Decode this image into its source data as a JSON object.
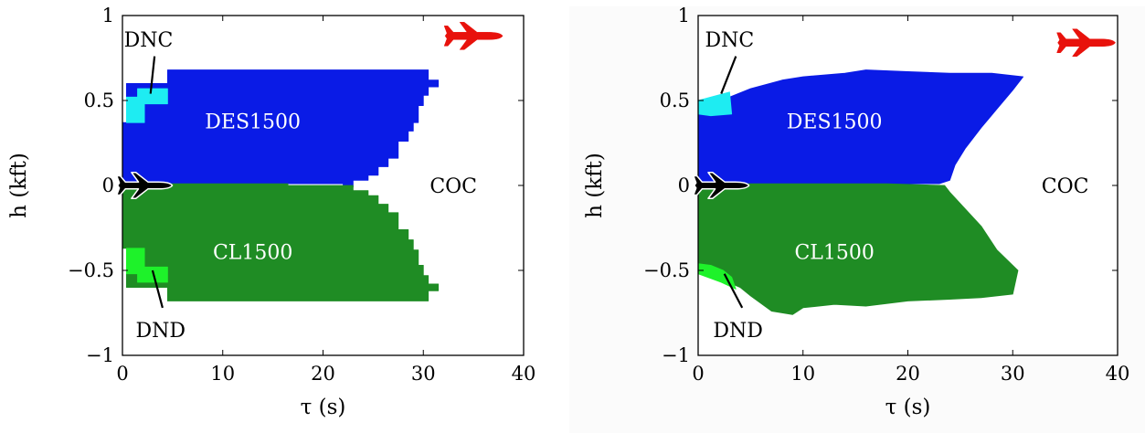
{
  "chart_data": [
    {
      "type": "heatmap",
      "title": "",
      "xlabel": "τ (s)",
      "ylabel": "h (kft)",
      "xlim": [
        0,
        40
      ],
      "ylim": [
        -1,
        1
      ],
      "xticks": [
        0,
        10,
        20,
        30,
        40
      ],
      "yticks": [
        -1,
        -0.5,
        0,
        0.5,
        1
      ],
      "xtick_labels": [
        "0",
        "10",
        "20",
        "30",
        "40"
      ],
      "ytick_labels": [
        "−1",
        "−0.5",
        "0",
        "0.5",
        "1"
      ],
      "grid": false,
      "legend": "none",
      "style": "stepped",
      "regions": [
        {
          "name": "DES1500",
          "color": "#0a1be6",
          "label_color": "#ffffff",
          "boundary": [
            [
              0,
              0.01
            ],
            [
              0,
              0.37
            ],
            [
              0.4,
              0.37
            ],
            [
              0.4,
              0.6
            ],
            [
              4.5,
              0.6
            ],
            [
              4.5,
              0.68
            ],
            [
              30.5,
              0.68
            ],
            [
              30.5,
              0.62
            ],
            [
              31.5,
              0.62
            ],
            [
              31.5,
              0.58
            ],
            [
              30.5,
              0.58
            ],
            [
              30.5,
              0.53
            ],
            [
              30,
              0.53
            ],
            [
              30,
              0.47
            ],
            [
              29.5,
              0.47
            ],
            [
              29.5,
              0.37
            ],
            [
              29,
              0.37
            ],
            [
              29,
              0.32
            ],
            [
              28.5,
              0.32
            ],
            [
              28.5,
              0.26
            ],
            [
              27.5,
              0.26
            ],
            [
              27.5,
              0.16
            ],
            [
              26.5,
              0.16
            ],
            [
              26.5,
              0.11
            ],
            [
              25.5,
              0.11
            ],
            [
              25.5,
              0.06
            ],
            [
              24.5,
              0.06
            ],
            [
              24.5,
              0.03
            ],
            [
              23,
              0.03
            ],
            [
              23,
              -0.01
            ],
            [
              22,
              -0.01
            ],
            [
              22,
              0.01
            ],
            [
              16.5,
              0.01
            ],
            [
              16.5,
              -0.01
            ],
            [
              4.5,
              -0.01
            ],
            [
              4.5,
              0.01
            ]
          ]
        },
        {
          "name": "DNC",
          "color": "#1eecf2",
          "label_color": "#000000",
          "boundary": [
            [
              0.4,
              0.37
            ],
            [
              0.4,
              0.52
            ],
            [
              1.5,
              0.52
            ],
            [
              1.5,
              0.57
            ],
            [
              4.5,
              0.57
            ],
            [
              4.5,
              0.48
            ],
            [
              2.2,
              0.48
            ],
            [
              2.2,
              0.37
            ]
          ]
        },
        {
          "name": "CL1500",
          "color": "#1f8c24",
          "label_color": "#ffffff",
          "boundary": [
            [
              0,
              0
            ],
            [
              0,
              -0.37
            ],
            [
              0.4,
              -0.37
            ],
            [
              0.4,
              -0.6
            ],
            [
              4.5,
              -0.6
            ],
            [
              4.5,
              -0.68
            ],
            [
              30.5,
              -0.68
            ],
            [
              30.5,
              -0.62
            ],
            [
              31.5,
              -0.62
            ],
            [
              31.5,
              -0.58
            ],
            [
              30.5,
              -0.58
            ],
            [
              30.5,
              -0.53
            ],
            [
              30,
              -0.53
            ],
            [
              30,
              -0.47
            ],
            [
              29.5,
              -0.47
            ],
            [
              29.5,
              -0.38
            ],
            [
              29,
              -0.38
            ],
            [
              29,
              -0.32
            ],
            [
              28.5,
              -0.32
            ],
            [
              28.5,
              -0.26
            ],
            [
              27.5,
              -0.26
            ],
            [
              27.5,
              -0.16
            ],
            [
              26.5,
              -0.16
            ],
            [
              26.5,
              -0.11
            ],
            [
              25.5,
              -0.11
            ],
            [
              25.5,
              -0.06
            ],
            [
              24.5,
              -0.06
            ],
            [
              24.5,
              -0.03
            ],
            [
              23,
              -0.03
            ],
            [
              23,
              0
            ],
            [
              16.5,
              0
            ],
            [
              16.5,
              0.01
            ],
            [
              4.5,
              0.01
            ],
            [
              4.5,
              0
            ]
          ]
        },
        {
          "name": "DND",
          "color": "#1ef22a",
          "label_color": "#000000",
          "boundary": [
            [
              0.4,
              -0.37
            ],
            [
              0.4,
              -0.52
            ],
            [
              1.5,
              -0.52
            ],
            [
              1.5,
              -0.57
            ],
            [
              4.5,
              -0.57
            ],
            [
              4.5,
              -0.48
            ],
            [
              2.2,
              -0.48
            ],
            [
              2.2,
              -0.37
            ]
          ]
        }
      ],
      "annotations": [
        {
          "text": "DNC",
          "text_at": [
            2.6,
            0.86
          ],
          "arrow_from": [
            3.2,
            0.76
          ],
          "arrow_to": [
            2.8,
            0.54
          ]
        },
        {
          "text": "DES1500",
          "text_at": [
            13,
            0.38
          ]
        },
        {
          "text": "COC",
          "text_at": [
            33,
            0.0
          ]
        },
        {
          "text": "CL1500",
          "text_at": [
            13,
            -0.39
          ]
        },
        {
          "text": "DND",
          "text_at": [
            3.8,
            -0.85
          ],
          "arrow_from": [
            4.0,
            -0.72
          ],
          "arrow_to": [
            3.0,
            -0.5
          ]
        }
      ],
      "ownship_icon": {
        "name": "ownship-airplane-icon",
        "color": "#000000",
        "at": [
          2.2,
          0
        ]
      },
      "intruder_icon": {
        "name": "intruder-airplane-icon",
        "color": "#e8120c",
        "at": [
          35,
          0.88
        ]
      }
    },
    {
      "type": "heatmap",
      "title": "",
      "xlabel": "τ (s)",
      "ylabel": "h (kft)",
      "xlim": [
        0,
        40
      ],
      "ylim": [
        -1,
        1
      ],
      "xticks": [
        0,
        10,
        20,
        30,
        40
      ],
      "yticks": [
        -1,
        -0.5,
        0,
        0.5,
        1
      ],
      "xtick_labels": [
        "0",
        "10",
        "20",
        "30",
        "40"
      ],
      "ytick_labels": [
        "−1",
        "−0.5",
        "0",
        "0.5",
        "1"
      ],
      "grid": false,
      "legend": "none",
      "style": "smooth",
      "regions": [
        {
          "name": "DES1500",
          "color": "#0a1be6",
          "label_color": "#ffffff",
          "boundary": [
            [
              0,
              0
            ],
            [
              0,
              0.45
            ],
            [
              3,
              0.52
            ],
            [
              5,
              0.57
            ],
            [
              8,
              0.62
            ],
            [
              10,
              0.64
            ],
            [
              14,
              0.66
            ],
            [
              16,
              0.68
            ],
            [
              20,
              0.67
            ],
            [
              24,
              0.66
            ],
            [
              28,
              0.66
            ],
            [
              31,
              0.64
            ],
            [
              30,
              0.56
            ],
            [
              28.5,
              0.45
            ],
            [
              27,
              0.34
            ],
            [
              25.5,
              0.22
            ],
            [
              24.5,
              0.12
            ],
            [
              24,
              0.03
            ],
            [
              23,
              0.01
            ],
            [
              18,
              0.01
            ],
            [
              10,
              0.01
            ],
            [
              0,
              0.01
            ]
          ]
        },
        {
          "name": "DNC",
          "color": "#1eecf2",
          "label_color": "#000000",
          "boundary": [
            [
              0,
              0.42
            ],
            [
              0,
              0.5
            ],
            [
              1.2,
              0.52
            ],
            [
              3,
              0.55
            ],
            [
              3.2,
              0.42
            ],
            [
              1.2,
              0.41
            ]
          ]
        },
        {
          "name": "CL1500",
          "color": "#1f8c24",
          "label_color": "#ffffff",
          "boundary": [
            [
              0,
              0
            ],
            [
              0,
              -0.5
            ],
            [
              2.5,
              -0.56
            ],
            [
              4,
              -0.6
            ],
            [
              5,
              -0.65
            ],
            [
              7,
              -0.74
            ],
            [
              9,
              -0.76
            ],
            [
              10,
              -0.72
            ],
            [
              13,
              -0.7
            ],
            [
              16,
              -0.71
            ],
            [
              20,
              -0.68
            ],
            [
              24,
              -0.67
            ],
            [
              27,
              -0.66
            ],
            [
              30,
              -0.64
            ],
            [
              30.5,
              -0.5
            ],
            [
              28.5,
              -0.38
            ],
            [
              27,
              -0.24
            ],
            [
              25.5,
              -0.14
            ],
            [
              24,
              -0.04
            ],
            [
              23.5,
              0
            ],
            [
              18,
              0.01
            ],
            [
              10,
              0.01
            ],
            [
              0,
              0.01
            ]
          ]
        },
        {
          "name": "DND",
          "color": "#1ef22a",
          "label_color": "#000000",
          "boundary": [
            [
              0,
              -0.46
            ],
            [
              0,
              -0.52
            ],
            [
              2.2,
              -0.57
            ],
            [
              3.6,
              -0.61
            ],
            [
              3.2,
              -0.54
            ],
            [
              2.4,
              -0.5
            ],
            [
              1.2,
              -0.47
            ]
          ]
        }
      ],
      "annotations": [
        {
          "text": "DNC",
          "text_at": [
            3.0,
            0.86
          ],
          "arrow_from": [
            3.6,
            0.76
          ],
          "arrow_to": [
            2.2,
            0.54
          ]
        },
        {
          "text": "DES1500",
          "text_at": [
            13,
            0.38
          ]
        },
        {
          "text": "COC",
          "text_at": [
            35,
            0.0
          ]
        },
        {
          "text": "CL1500",
          "text_at": [
            13,
            -0.39
          ]
        },
        {
          "text": "DND",
          "text_at": [
            3.8,
            -0.85
          ],
          "arrow_from": [
            4.2,
            -0.72
          ],
          "arrow_to": [
            2.5,
            -0.52
          ]
        }
      ],
      "ownship_icon": {
        "name": "ownship-airplane-icon",
        "color": "#000000",
        "at": [
          2.2,
          0
        ]
      },
      "intruder_icon": {
        "name": "intruder-airplane-icon",
        "color": "#e8120c",
        "at": [
          37,
          0.84
        ]
      }
    }
  ]
}
